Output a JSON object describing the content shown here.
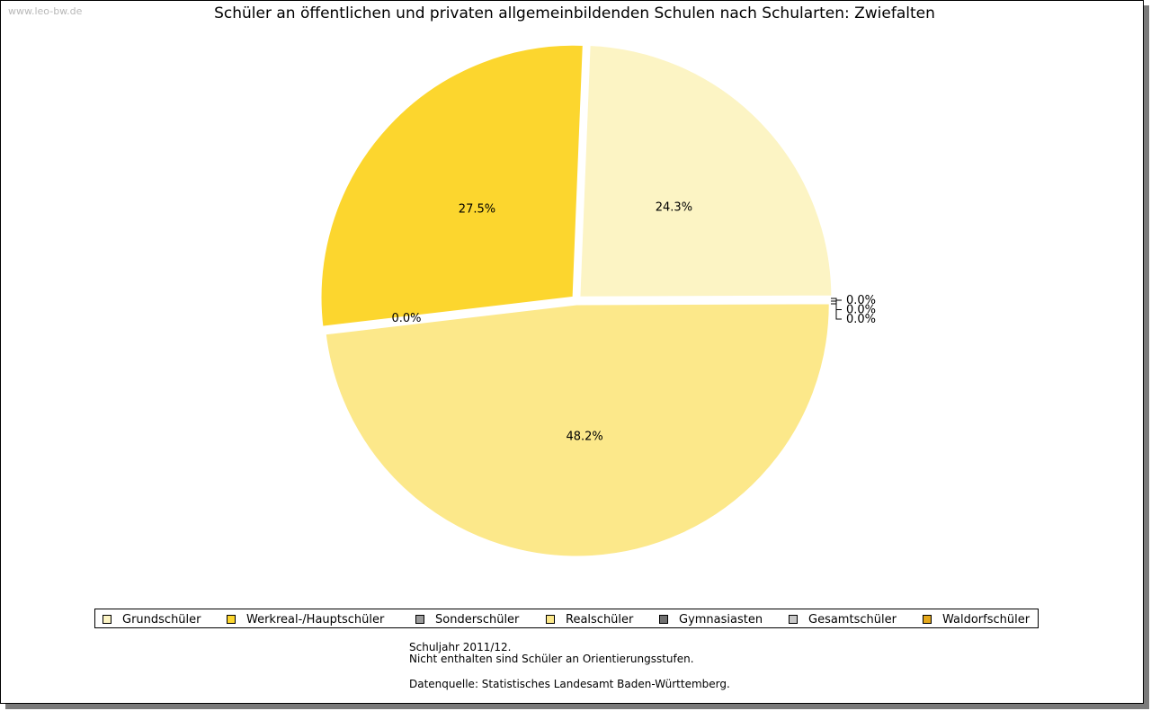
{
  "watermark": "www.leo-bw.de",
  "notes": {
    "line1": "Schuljahr 2011/12.",
    "line2": "Nicht enthalten sind Schüler an Orientierungsstufen.",
    "source": "Datenquelle: Statistisches Landesamt Baden-Württemberg."
  },
  "chart_data": {
    "type": "pie",
    "title": "Schüler an öffentlichen und privaten allgemeinbildenden Schulen nach Schularten: Zwiefalten",
    "legend_position": "bottom",
    "slices": [
      {
        "name": "Grundschüler",
        "value": 24.3,
        "label": "24.3%",
        "color": "#fcf4c4"
      },
      {
        "name": "Gymnasiasten",
        "value": 0.0,
        "label": "0.0%",
        "color": "#707070"
      },
      {
        "name": "Gesamtschüler",
        "value": 0.0,
        "label": "0.0%",
        "color": "#c8c8c8"
      },
      {
        "name": "Waldorfschüler",
        "value": 0.0,
        "label": "0.0%",
        "color": "#e4a81c"
      },
      {
        "name": "Realschüler",
        "value": 48.2,
        "label": "48.2%",
        "color": "#fce88a"
      },
      {
        "name": "Sonderschüler",
        "value": 0.0,
        "label": "0.0%",
        "color": "#9a9a9a"
      },
      {
        "name": "Werkreal-/Hauptschüler",
        "value": 27.5,
        "label": "27.5%",
        "color": "#fcd62e"
      }
    ],
    "legend": [
      {
        "name": "Grundschüler",
        "color": "#fcf4c4"
      },
      {
        "name": "Werkreal-/Hauptschüler",
        "color": "#fcd62e"
      },
      {
        "name": "Sonderschüler",
        "color": "#9a9a9a"
      },
      {
        "name": "Realschüler",
        "color": "#fce88a"
      },
      {
        "name": "Gymnasiasten",
        "color": "#707070"
      },
      {
        "name": "Gesamtschüler",
        "color": "#c8c8c8"
      },
      {
        "name": "Waldorfschüler",
        "color": "#e4a81c"
      }
    ]
  }
}
